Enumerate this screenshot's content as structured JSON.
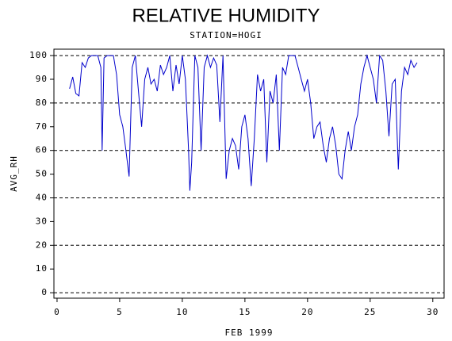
{
  "chart_data": {
    "type": "line",
    "title": "RELATIVE HUMIDITY",
    "subtitle": "STATION=HOGI",
    "x_label": "FEB 1999",
    "y_label": "AVG_RH",
    "xlim": [
      -0.25,
      30.9
    ],
    "ylim": [
      -2.3,
      102.7
    ],
    "xticks": [
      0,
      5,
      10,
      15,
      20,
      25,
      30
    ],
    "yticks": [
      0,
      10,
      20,
      30,
      40,
      50,
      60,
      70,
      80,
      90,
      100
    ],
    "grid_lines": [
      0,
      20,
      40,
      60,
      80,
      100
    ],
    "series": [
      {
        "color": "#0000cc",
        "x": [
          1.0,
          1.25,
          1.5,
          1.75,
          2.0,
          2.25,
          2.5,
          2.75,
          3.0,
          3.25,
          3.5,
          3.6,
          3.75,
          4.0,
          4.25,
          4.5,
          4.75,
          5.0,
          5.25,
          5.5,
          5.75,
          6.0,
          6.25,
          6.5,
          6.75,
          7.0,
          7.25,
          7.5,
          7.75,
          8.0,
          8.25,
          8.5,
          8.75,
          9.0,
          9.25,
          9.5,
          9.75,
          10.0,
          10.25,
          10.5,
          10.6,
          10.75,
          11.0,
          11.25,
          11.5,
          11.75,
          12.0,
          12.25,
          12.5,
          12.75,
          13.0,
          13.25,
          13.5,
          13.75,
          14.0,
          14.25,
          14.5,
          14.75,
          15.0,
          15.25,
          15.5,
          15.75,
          16.0,
          16.25,
          16.5,
          16.75,
          17.0,
          17.25,
          17.5,
          17.75,
          18.0,
          18.25,
          18.5,
          18.75,
          19.0,
          19.25,
          19.5,
          19.75,
          20.0,
          20.25,
          20.5,
          20.75,
          21.0,
          21.25,
          21.5,
          21.75,
          22.0,
          22.25,
          22.5,
          22.75,
          23.0,
          23.25,
          23.5,
          23.75,
          24.0,
          24.25,
          24.5,
          24.75,
          25.0,
          25.25,
          25.5,
          25.75,
          26.0,
          26.25,
          26.5,
          26.75,
          27.0,
          27.25,
          27.5,
          27.75,
          28.0,
          28.25,
          28.5,
          28.75
        ],
        "values": [
          86,
          91,
          84,
          83,
          97,
          95,
          99,
          100,
          100,
          100,
          95,
          60,
          99,
          100,
          100,
          100,
          92,
          75,
          70,
          60,
          49,
          95,
          100,
          85,
          70,
          90,
          95,
          88,
          90,
          85,
          96,
          92,
          95,
          100,
          85,
          96,
          88,
          100,
          90,
          60,
          43,
          55,
          100,
          95,
          60,
          95,
          100,
          95,
          99,
          96,
          72,
          100,
          48,
          60,
          65,
          62,
          52,
          70,
          75,
          65,
          45,
          65,
          92,
          85,
          90,
          55,
          85,
          80,
          92,
          60,
          95,
          92,
          100,
          100,
          100,
          95,
          90,
          85,
          90,
          80,
          65,
          70,
          72,
          62,
          55,
          65,
          70,
          62,
          50,
          48,
          60,
          68,
          60,
          70,
          75,
          88,
          95,
          100,
          95,
          90,
          80,
          100,
          98,
          85,
          66,
          88,
          90,
          52,
          85,
          95,
          92,
          98,
          95,
          97
        ]
      }
    ]
  }
}
